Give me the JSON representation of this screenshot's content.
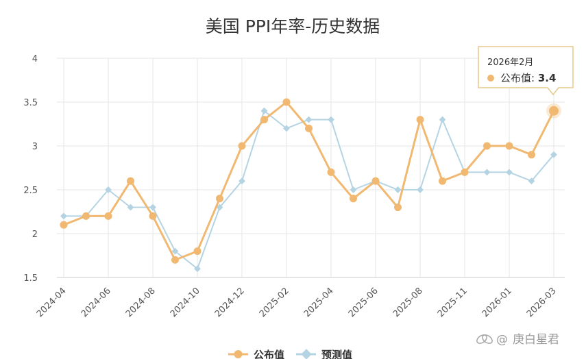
{
  "chart_data": {
    "type": "line",
    "title": "美国 PPI年率-历史数据",
    "y_ticks": [
      "1.5",
      "2",
      "2.5",
      "3",
      "3.5",
      "4"
    ],
    "ylim": [
      1.5,
      4
    ],
    "grid": true,
    "x_tick_labels": [
      "2024-04",
      "2024-06",
      "2024-08",
      "2024-10",
      "2024-12",
      "2025-02",
      "2025-04",
      "2025-06",
      "2025-08",
      "2025-11",
      "2026-01",
      "2026-03"
    ],
    "x": [
      "2024-04",
      "2024-05",
      "2024-06",
      "2024-07",
      "2024-08",
      "2024-09",
      "2024-10",
      "2024-11",
      "2024-12",
      "2025-01",
      "2025-02",
      "2025-03",
      "2025-04",
      "2025-05",
      "2025-06",
      "2025-07",
      "2025-08",
      "2025-09",
      "2025-11",
      "2025-12",
      "2026-01",
      "2026-02",
      "2026-03"
    ],
    "series": [
      {
        "name": "公布值",
        "color": "#f0b870",
        "values": [
          2.1,
          2.2,
          2.2,
          2.6,
          2.2,
          1.7,
          1.8,
          2.4,
          3.0,
          3.3,
          3.5,
          3.2,
          2.7,
          2.4,
          2.6,
          2.3,
          3.3,
          2.6,
          2.7,
          3.0,
          3.0,
          2.9,
          3.4
        ]
      },
      {
        "name": "预测值",
        "color": "#b5d4e3",
        "values": [
          2.2,
          2.2,
          2.5,
          2.3,
          2.3,
          1.8,
          1.6,
          2.3,
          2.6,
          3.4,
          3.2,
          3.3,
          3.3,
          2.5,
          2.6,
          2.5,
          2.5,
          3.3,
          2.7,
          2.7,
          2.7,
          2.6,
          2.9
        ]
      }
    ],
    "legend_position": "bottom",
    "tooltip": {
      "date": "2026年2月",
      "label": "公布值: ",
      "value": "3.4",
      "point_index": 22
    },
    "watermark": "庚白星君"
  }
}
